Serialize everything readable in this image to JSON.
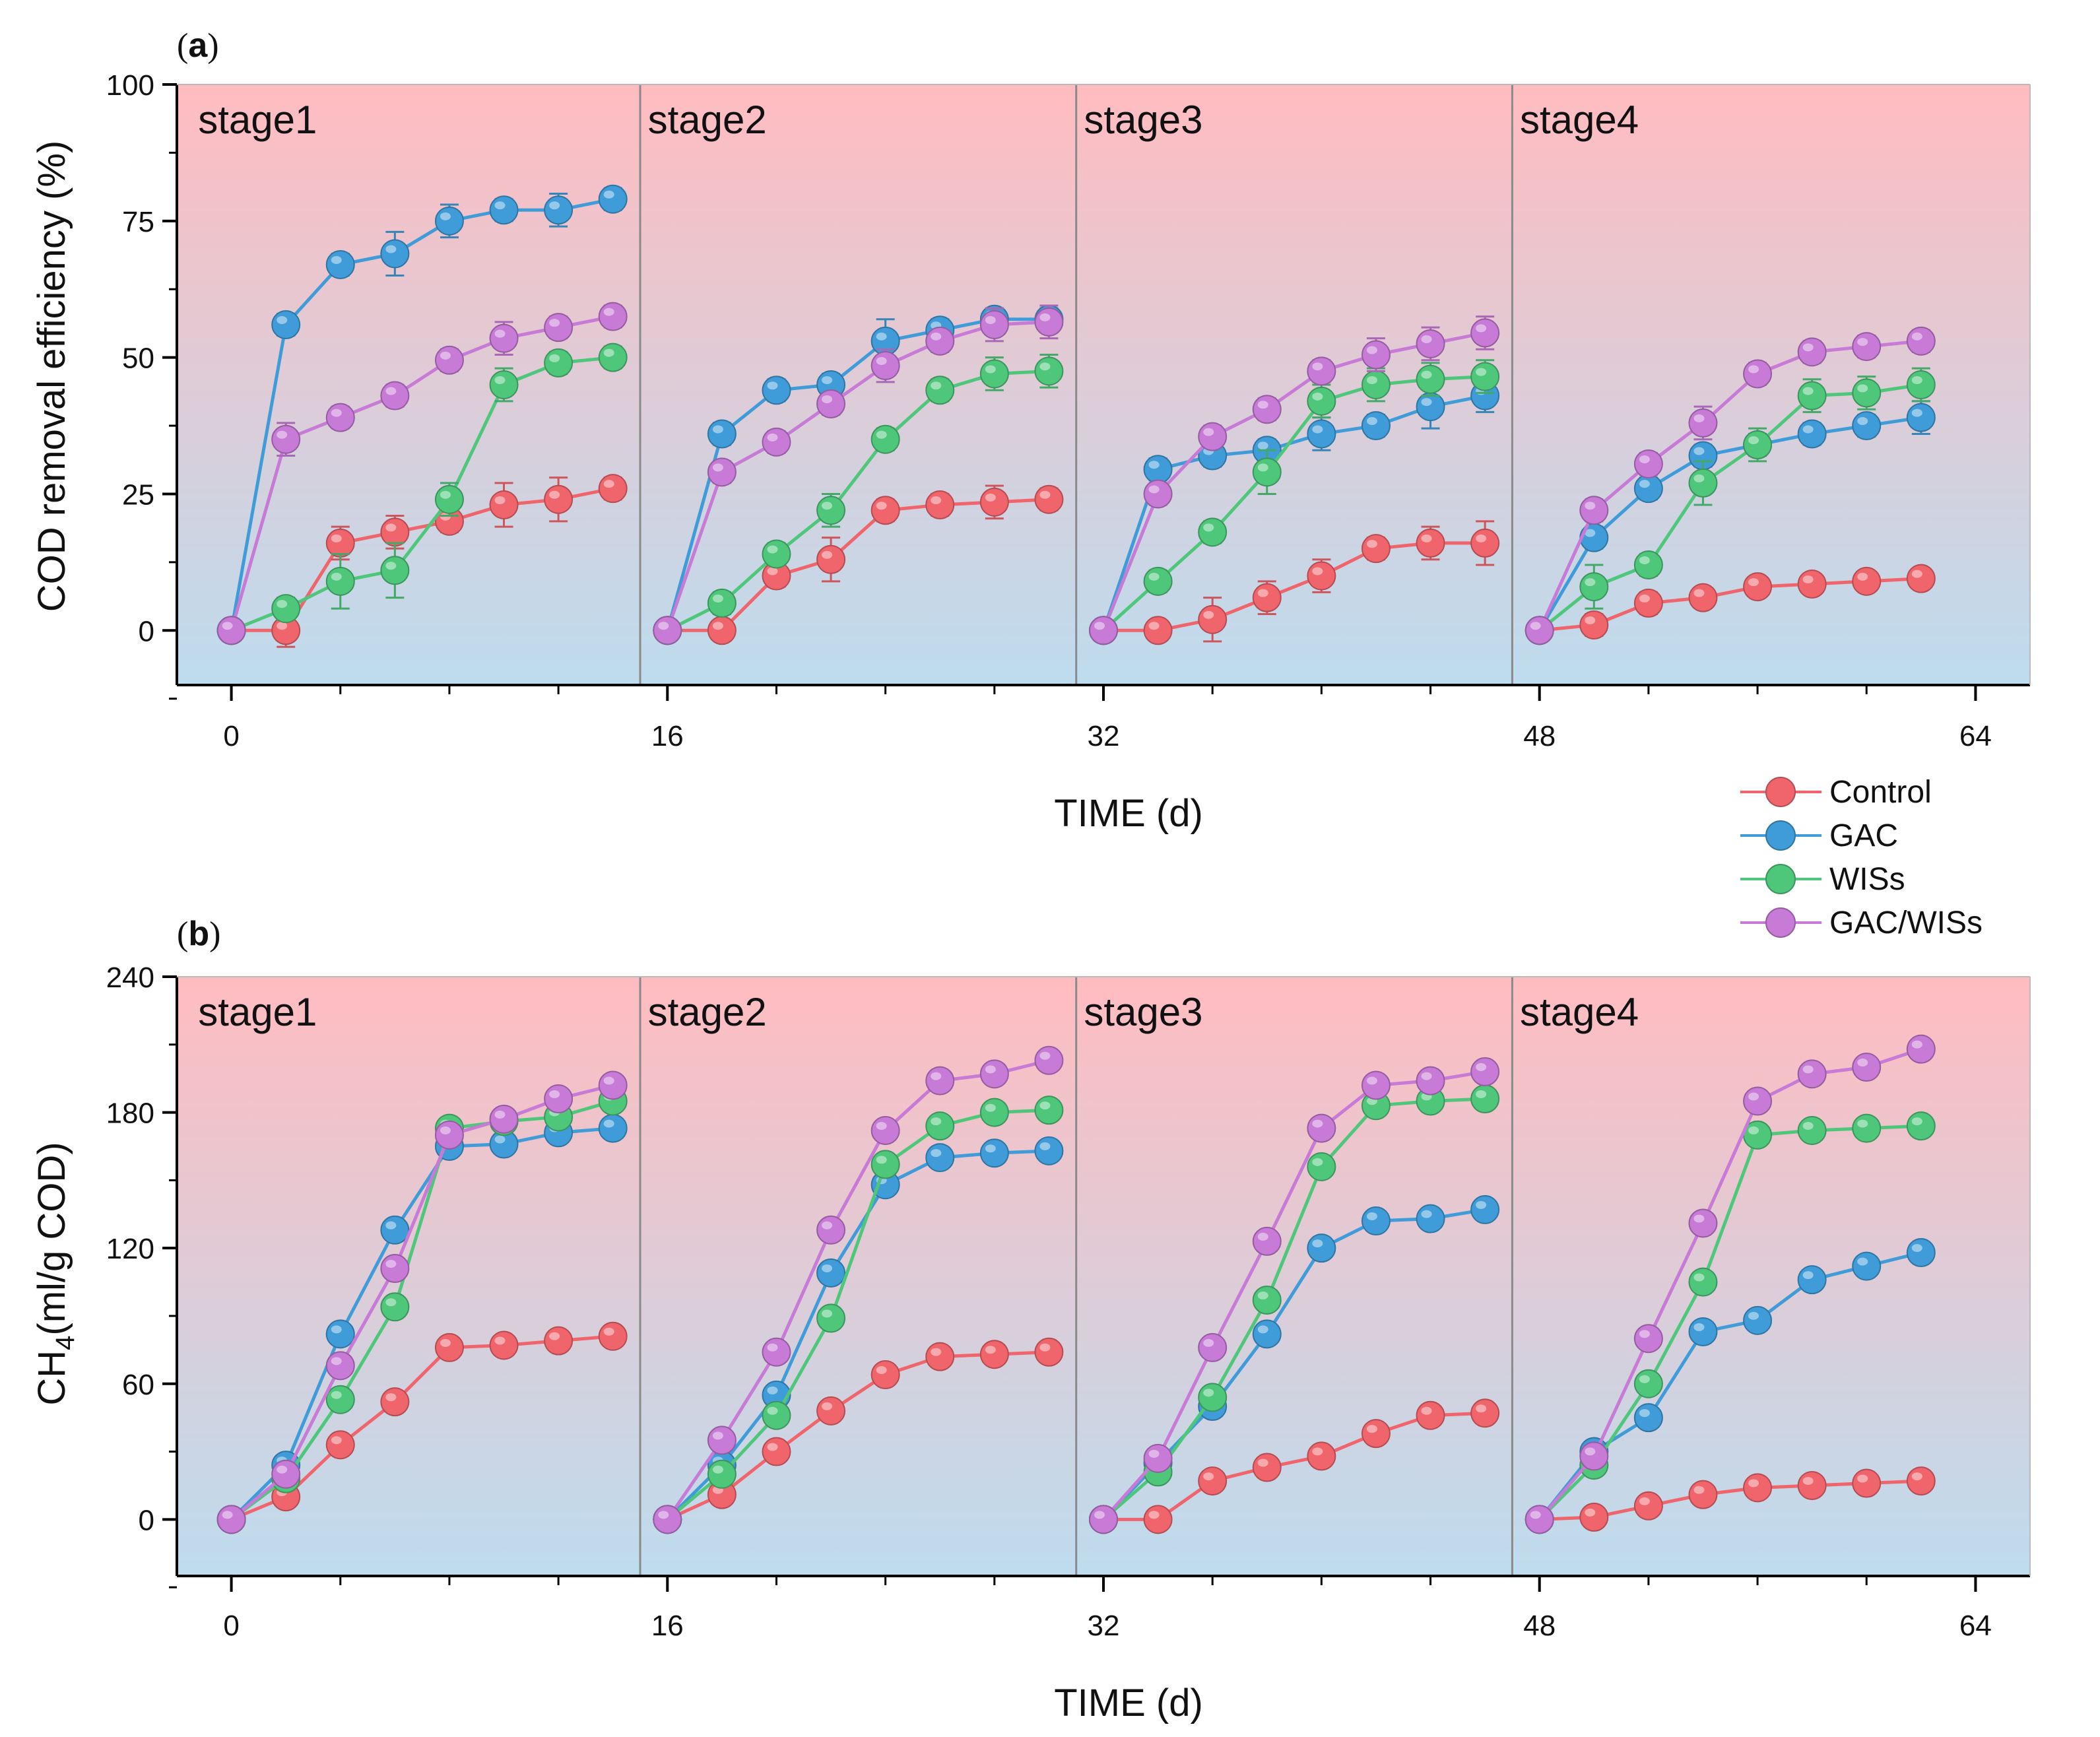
{
  "chart_data": [
    {
      "panel": "(a)",
      "type": "line",
      "xlabel": "TIME (d)",
      "ylabel": "COD removal efficiency (%)",
      "xlim": [
        -2,
        66
      ],
      "ylim": [
        -10,
        100
      ],
      "xticks": [
        0,
        16,
        32,
        48,
        64
      ],
      "yticks": [
        0,
        25,
        50,
        75,
        100
      ],
      "stage_boundaries": [
        15,
        31,
        47
      ],
      "stages": [
        {
          "label": "stage1",
          "x": -1.8
        },
        {
          "label": "stage2",
          "x": 14.7
        },
        {
          "label": "stage3",
          "x": 30.7
        },
        {
          "label": "stage4",
          "x": 46.7
        }
      ],
      "series": [
        {
          "name": "Control",
          "color": "#f0656c",
          "x": [
            0,
            2,
            4,
            6,
            8,
            10,
            12,
            14,
            16,
            18,
            20,
            22,
            24,
            26,
            28,
            30,
            32,
            34,
            36,
            38,
            40,
            42,
            44,
            46,
            48,
            50,
            52,
            54,
            56,
            58,
            60,
            62
          ],
          "values": [
            0,
            0,
            16,
            18,
            20,
            23,
            24,
            26,
            0,
            0,
            10,
            13,
            22,
            23,
            23.5,
            24,
            0,
            0,
            2,
            6,
            10,
            15,
            16,
            16,
            0,
            1,
            5,
            6,
            8,
            8.5,
            9,
            9.5
          ],
          "errors": [
            0,
            3,
            3,
            3,
            2,
            4,
            4,
            2,
            0,
            1,
            2,
            4,
            2,
            2,
            3,
            2,
            0,
            1,
            4,
            3,
            3,
            2,
            3,
            4,
            0,
            2,
            2,
            1,
            1,
            1,
            1,
            1
          ]
        },
        {
          "name": "GAC",
          "color": "#3f9cd8",
          "x": [
            0,
            2,
            4,
            6,
            8,
            10,
            12,
            14,
            16,
            18,
            20,
            22,
            24,
            26,
            28,
            30,
            32,
            34,
            36,
            38,
            40,
            42,
            44,
            46,
            48,
            50,
            52,
            54,
            56,
            58,
            60,
            62
          ],
          "values": [
            0,
            56,
            67,
            69,
            75,
            77,
            77,
            79,
            0,
            36,
            44,
            45,
            53,
            55,
            57,
            57,
            0,
            29.5,
            32,
            33,
            36,
            37.5,
            41,
            43,
            0,
            17,
            26,
            32,
            34,
            36,
            37.5,
            39
          ],
          "errors": [
            0,
            2,
            2,
            4,
            3,
            2,
            3,
            2,
            0,
            2,
            2,
            2,
            4,
            2,
            2,
            2,
            0,
            2,
            2,
            2,
            3,
            2,
            4,
            3,
            0,
            2,
            2,
            2,
            2,
            2,
            2,
            3
          ]
        },
        {
          "name": "WISs",
          "color": "#4fc77a",
          "x": [
            0,
            2,
            4,
            6,
            8,
            10,
            12,
            14,
            16,
            18,
            20,
            22,
            24,
            26,
            28,
            30,
            32,
            34,
            36,
            38,
            40,
            42,
            44,
            46,
            48,
            50,
            52,
            54,
            56,
            58,
            60,
            62
          ],
          "values": [
            0,
            4,
            9,
            11,
            24,
            45,
            49,
            50,
            0,
            5,
            14,
            22,
            35,
            44,
            47,
            47.5,
            0,
            9,
            18,
            29,
            42,
            45,
            46,
            46.5,
            0,
            8,
            12,
            27,
            34,
            43,
            43.5,
            45
          ],
          "errors": [
            0,
            2,
            5,
            5,
            3,
            3,
            2,
            2,
            0,
            2,
            2,
            3,
            2,
            2,
            3,
            3,
            0,
            2,
            2,
            4,
            3,
            3,
            3,
            3,
            0,
            4,
            2,
            4,
            3,
            3,
            3,
            3
          ]
        },
        {
          "name": "GAC/WISs",
          "color": "#c77ad6",
          "x": [
            0,
            2,
            4,
            6,
            8,
            10,
            12,
            14,
            16,
            18,
            20,
            22,
            24,
            26,
            28,
            30,
            32,
            34,
            36,
            38,
            40,
            42,
            44,
            46,
            48,
            50,
            52,
            54,
            56,
            58,
            60,
            62
          ],
          "values": [
            0,
            35,
            39,
            43,
            49.5,
            53.5,
            55.5,
            57.5,
            0,
            29,
            34.5,
            41.5,
            48.5,
            53,
            56,
            56.5,
            0,
            25,
            35.5,
            40.5,
            47.5,
            50.5,
            52.5,
            54.5,
            0,
            22,
            30.5,
            38,
            47,
            51,
            52,
            53
          ],
          "errors": [
            0,
            3,
            2,
            2,
            2,
            3,
            2,
            2,
            0,
            2,
            2,
            2,
            3,
            2,
            3,
            3,
            0,
            2,
            2,
            2,
            2,
            3,
            3,
            3,
            0,
            2,
            2,
            3,
            2,
            2,
            2,
            2
          ]
        }
      ]
    },
    {
      "panel": "(b)",
      "type": "line",
      "xlabel": "TIME (d)",
      "ylabel_main": "CH",
      "ylabel_sub": "4",
      "ylabel_rest": "(ml/g COD)",
      "xlim": [
        -2,
        66
      ],
      "ylim": [
        -25,
        240
      ],
      "xticks": [
        0,
        16,
        32,
        48,
        64
      ],
      "yticks": [
        0,
        60,
        120,
        180,
        240
      ],
      "stage_boundaries": [
        15,
        31,
        47
      ],
      "stages": [
        {
          "label": "stage1",
          "x": -1.8
        },
        {
          "label": "stage2",
          "x": 14.7
        },
        {
          "label": "stage3",
          "x": 30.7
        },
        {
          "label": "stage4",
          "x": 46.7
        }
      ],
      "series": [
        {
          "name": "Control",
          "color": "#f0656c",
          "x": [
            0,
            2,
            4,
            6,
            8,
            10,
            12,
            14,
            16,
            18,
            20,
            22,
            24,
            26,
            28,
            30,
            32,
            34,
            36,
            38,
            40,
            42,
            44,
            46,
            48,
            50,
            52,
            54,
            56,
            58,
            60,
            62
          ],
          "values": [
            0,
            10,
            33,
            52,
            76,
            77,
            79,
            81,
            0,
            11,
            30,
            48,
            64,
            72,
            73,
            74,
            0,
            0,
            17,
            23,
            28,
            38,
            46,
            47,
            0,
            1,
            6,
            11,
            14,
            15,
            16,
            17
          ],
          "errors": [
            0,
            2,
            2,
            2,
            3,
            3,
            3,
            3,
            0,
            2,
            2,
            2,
            3,
            3,
            3,
            3,
            0,
            1,
            2,
            2,
            2,
            2,
            2,
            2,
            0,
            1,
            2,
            2,
            2,
            2,
            2,
            2
          ]
        },
        {
          "name": "GAC",
          "color": "#3f9cd8",
          "x": [
            0,
            2,
            4,
            6,
            8,
            10,
            12,
            14,
            16,
            18,
            20,
            22,
            24,
            26,
            28,
            30,
            32,
            34,
            36,
            38,
            40,
            42,
            44,
            46,
            48,
            50,
            52,
            54,
            56,
            58,
            60,
            62
          ],
          "values": [
            0,
            24,
            82,
            128,
            165,
            166,
            171,
            173,
            0,
            24,
            55,
            109,
            148,
            160,
            162,
            163,
            0,
            25,
            50,
            82,
            120,
            132,
            133,
            137,
            0,
            30,
            45,
            83,
            88,
            106,
            112,
            118
          ],
          "errors": [
            0,
            2,
            3,
            3,
            3,
            3,
            3,
            3,
            0,
            2,
            3,
            3,
            3,
            3,
            3,
            3,
            0,
            2,
            3,
            3,
            3,
            3,
            3,
            3,
            0,
            2,
            3,
            3,
            3,
            3,
            3,
            3
          ]
        },
        {
          "name": "WISs",
          "color": "#4fc77a",
          "x": [
            0,
            2,
            4,
            6,
            8,
            10,
            12,
            14,
            16,
            18,
            20,
            22,
            24,
            26,
            28,
            30,
            32,
            34,
            36,
            38,
            40,
            42,
            44,
            46,
            48,
            50,
            52,
            54,
            56,
            58,
            60,
            62
          ],
          "values": [
            0,
            18,
            53,
            94,
            173,
            176,
            178,
            185,
            0,
            20,
            46,
            89,
            157,
            174,
            180,
            181,
            0,
            21,
            54,
            97,
            156,
            183,
            185,
            186,
            0,
            24,
            60,
            105,
            170,
            172,
            173,
            174
          ],
          "errors": [
            0,
            2,
            3,
            3,
            3,
            3,
            3,
            3,
            0,
            2,
            3,
            3,
            3,
            3,
            3,
            3,
            0,
            2,
            3,
            3,
            3,
            3,
            3,
            3,
            0,
            2,
            3,
            3,
            4,
            4,
            3,
            3
          ]
        },
        {
          "name": "GAC/WISs",
          "color": "#c77ad6",
          "x": [
            0,
            2,
            4,
            6,
            8,
            10,
            12,
            14,
            16,
            18,
            20,
            22,
            24,
            26,
            28,
            30,
            32,
            34,
            36,
            38,
            40,
            42,
            44,
            46,
            48,
            50,
            52,
            54,
            56,
            58,
            60,
            62
          ],
          "values": [
            0,
            20,
            68,
            111,
            170,
            177,
            186,
            192,
            0,
            35,
            74,
            128,
            172,
            194,
            197,
            203,
            0,
            27,
            76,
            123,
            173,
            192,
            194,
            198,
            0,
            28,
            80,
            131,
            185,
            197,
            200,
            208
          ],
          "errors": [
            0,
            2,
            3,
            3,
            3,
            3,
            3,
            3,
            0,
            2,
            3,
            3,
            3,
            3,
            3,
            3,
            0,
            2,
            3,
            3,
            3,
            3,
            3,
            3,
            0,
            2,
            3,
            3,
            3,
            4,
            4,
            4
          ]
        }
      ]
    }
  ],
  "legend": {
    "items": [
      {
        "label": "Control",
        "color": "#f0656c"
      },
      {
        "label": "GAC",
        "color": "#3f9cd8"
      },
      {
        "label": "WISs",
        "color": "#4fc77a"
      },
      {
        "label": "GAC/WISs",
        "color": "#c77ad6"
      }
    ]
  },
  "colors": {
    "bg_top": "#ffbcc0",
    "bg_bottom": "#bddcee",
    "divider": "#8a8a8a"
  }
}
